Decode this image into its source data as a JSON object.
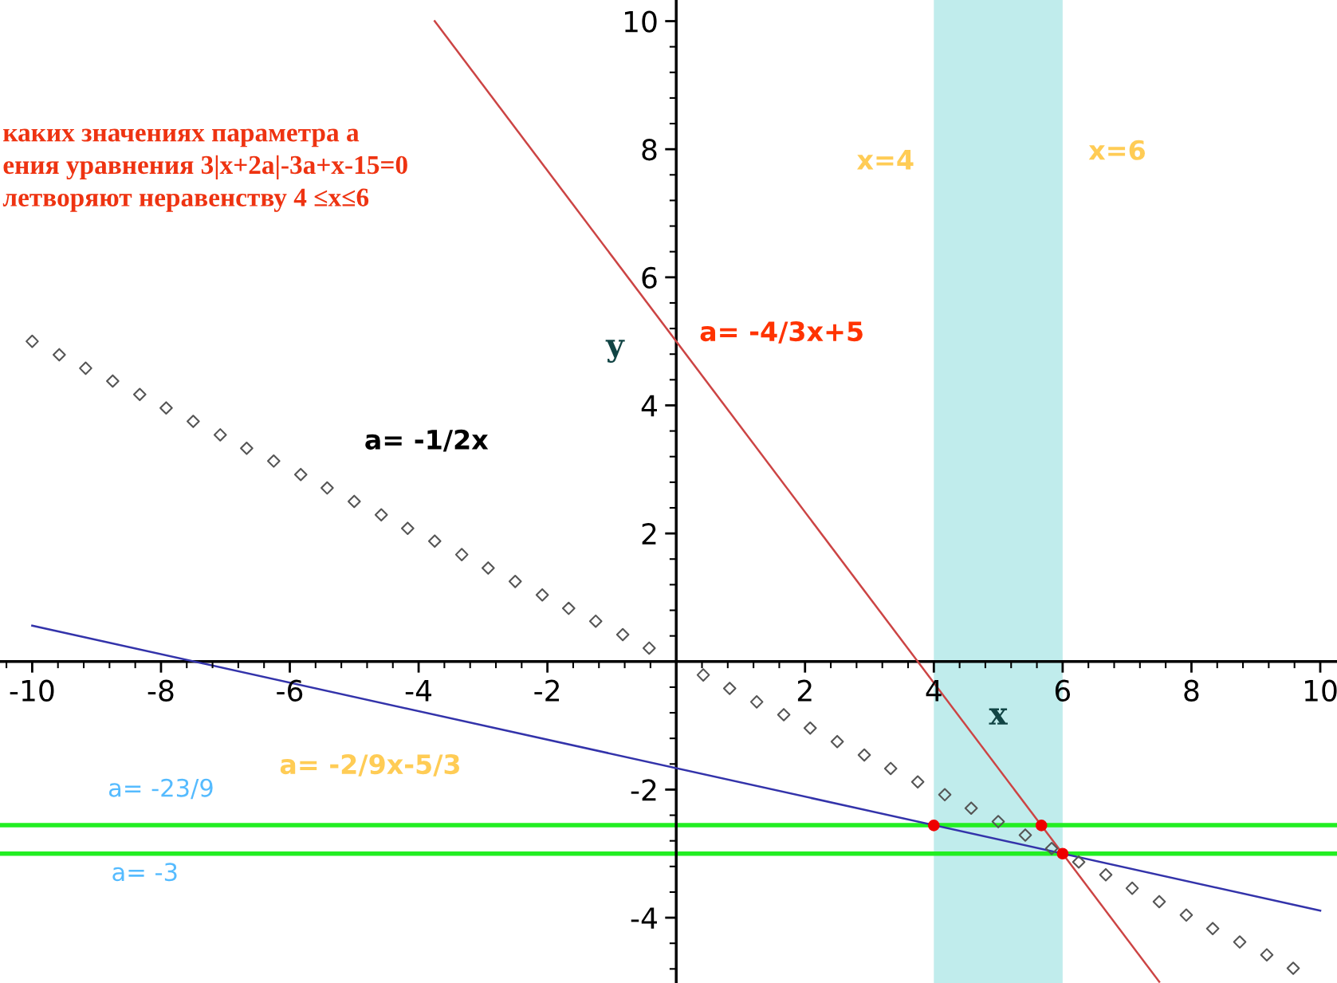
{
  "chart_data": {
    "type": "line",
    "title": "каких значениях параметра а\nения уравнения 3|x+2a|-3a+x-15=0\nлетворяют неравенству 4 ≤x≤6",
    "xlabel": "x",
    "ylabel": "y",
    "xlim": [
      -10.5,
      10.26
    ],
    "ylim": [
      -5.02,
      10.33
    ],
    "xticks": [
      {
        "value": -10,
        "label": "-10"
      },
      {
        "value": -8,
        "label": "-8"
      },
      {
        "value": -6,
        "label": "-6"
      },
      {
        "value": -4,
        "label": "-4"
      },
      {
        "value": -2,
        "label": "-2"
      },
      2,
      4,
      6,
      8,
      10
    ],
    "yticks": [
      {
        "value": -4,
        "label": "-4"
      },
      {
        "value": -2,
        "label": "-2"
      },
      2,
      4,
      6,
      8,
      10
    ],
    "grid": false,
    "legend": false,
    "series": [
      {
        "name": "a= -4/3x+5",
        "color": "#cc4444",
        "x": [
          -3.75,
          7.5
        ],
        "values": [
          10,
          -5
        ]
      },
      {
        "name": "a= -2/9x-5/3",
        "color": "#3333aa",
        "x": [
          -10,
          10
        ],
        "values": [
          0.56,
          -3.89
        ]
      },
      {
        "name": "a= -1/2x",
        "type": "scatter",
        "marker": "diamond",
        "color": "#555555",
        "x": [
          -10,
          -9.58,
          -9.17,
          -8.75,
          -8.33,
          -7.92,
          -7.5,
          -7.08,
          -6.67,
          -6.25,
          -5.83,
          -5.42,
          -5,
          -4.58,
          -4.17,
          -3.75,
          -3.33,
          -2.92,
          -2.5,
          -2.08,
          -1.67,
          -1.25,
          -0.83,
          -0.42,
          0.42,
          0.83,
          1.25,
          1.67,
          2.08,
          2.5,
          2.92,
          3.33,
          3.75,
          4.17,
          4.58,
          5,
          5.42,
          5.83,
          6.25,
          6.67,
          7.08,
          7.5,
          7.92,
          8.33,
          8.75,
          9.17,
          9.58
        ],
        "values": [
          5,
          4.79,
          4.58,
          4.38,
          4.17,
          3.96,
          3.75,
          3.54,
          3.33,
          3.13,
          2.92,
          2.71,
          2.5,
          2.29,
          2.08,
          1.88,
          1.67,
          1.46,
          1.25,
          1.04,
          0.83,
          0.63,
          0.42,
          0.21,
          -0.21,
          -0.42,
          -0.63,
          -0.83,
          -1.04,
          -1.25,
          -1.46,
          -1.67,
          -1.88,
          -2.08,
          -2.29,
          -2.5,
          -2.71,
          -2.92,
          -3.13,
          -3.33,
          -3.54,
          -3.75,
          -3.96,
          -4.17,
          -4.38,
          -4.58,
          -4.79
        ]
      },
      {
        "type": "scatter",
        "marker": "circle",
        "color": "#ee0000",
        "x": [
          4,
          5.67,
          6
        ],
        "values": [
          -2.56,
          -2.56,
          -3
        ]
      }
    ],
    "ref_lines": [
      {
        "axis": "y",
        "value": -2.556,
        "color": "#22ee22"
      },
      {
        "axis": "y",
        "value": -3,
        "color": "#22ee22"
      }
    ],
    "bands": [
      {
        "axis": "x",
        "from": 4,
        "to": 6,
        "color": "#c0ecec"
      }
    ],
    "annotations": [
      {
        "text": "x=4",
        "x": 4,
        "y": 7.8
      },
      {
        "text": "x=6",
        "x": 6,
        "y": 7.95
      },
      "a= -23/9",
      "a= -3"
    ]
  }
}
